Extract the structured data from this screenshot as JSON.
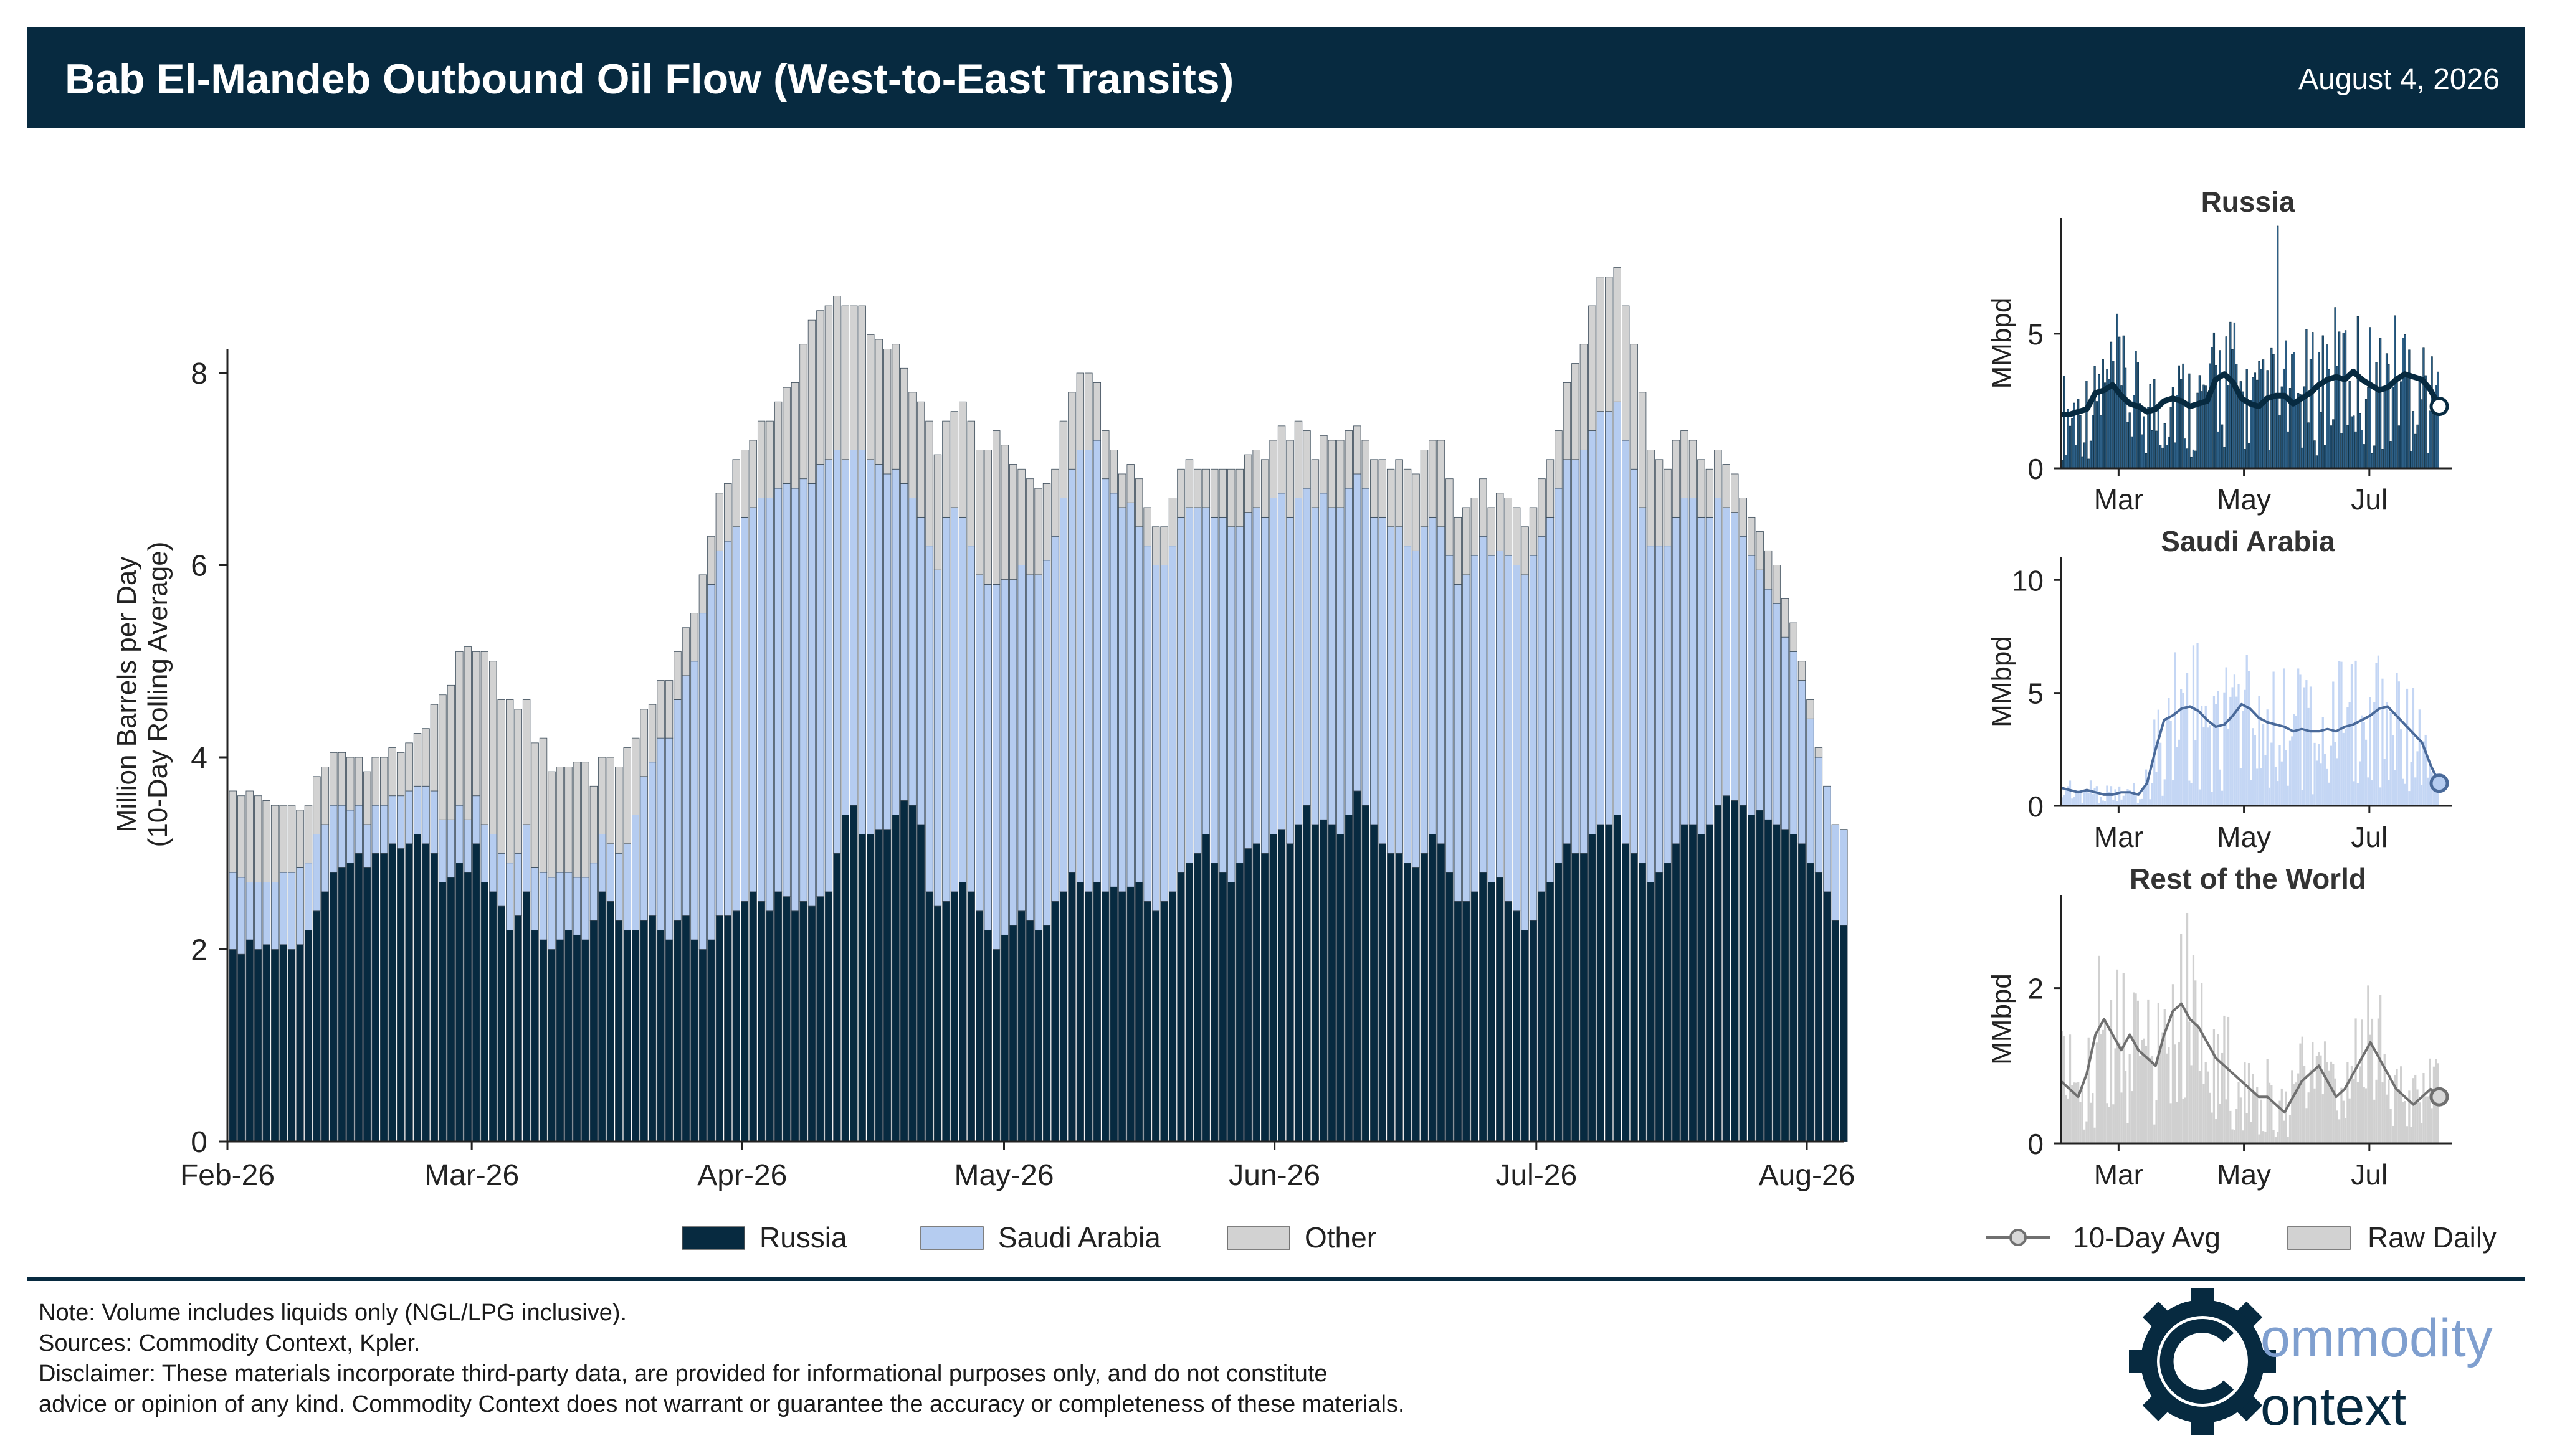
{
  "header": {
    "title": "Bab El-Mandeb Outbound Oil Flow (West-to-East Transits)",
    "date": "August 4, 2026"
  },
  "colors": {
    "russia": "#072a40",
    "saudi": "#b5ccf0",
    "other": "#d2d2d2",
    "header_bg": "#072a40",
    "logo_gear": "#072a40",
    "logo_text": "#7f9fcf"
  },
  "chart_data": [
    {
      "type": "bar",
      "stacked": true,
      "ylabel": "Million Barrels per Day\n(10-Day Rolling Average)",
      "ylim": [
        0,
        9.3
      ],
      "yticks": [
        0,
        2,
        4,
        6,
        8
      ],
      "x_start": "2026-02-01",
      "x_ticks": [
        "Feb-26",
        "Mar-26",
        "Apr-26",
        "May-26",
        "Jun-26",
        "Jul-26",
        "Aug-26"
      ],
      "x_tick_dates": [
        "2026-02-01",
        "2026-03-01",
        "2026-04-01",
        "2026-05-01",
        "2026-06-01",
        "2026-07-01",
        "2026-08-01"
      ],
      "series": [
        {
          "name": "Russia",
          "values": [
            2.0,
            1.95,
            2.1,
            2.0,
            2.05,
            2.0,
            2.05,
            2.0,
            2.05,
            2.2,
            2.4,
            2.6,
            2.8,
            2.85,
            2.9,
            3.0,
            2.85,
            3.0,
            3.0,
            3.1,
            3.05,
            3.1,
            3.2,
            3.1,
            3.0,
            2.7,
            2.75,
            2.9,
            2.8,
            3.1,
            2.7,
            2.6,
            2.45,
            2.2,
            2.35,
            2.6,
            2.2,
            2.1,
            2.0,
            2.1,
            2.2,
            2.15,
            2.1,
            2.3,
            2.6,
            2.5,
            2.3,
            2.2,
            2.2,
            2.3,
            2.35,
            2.2,
            2.1,
            2.3,
            2.35,
            2.1,
            2.0,
            2.1,
            2.35,
            2.35,
            2.4,
            2.5,
            2.6,
            2.5,
            2.4,
            2.6,
            2.55,
            2.4,
            2.5,
            2.45,
            2.55,
            2.6,
            3.0,
            3.4,
            3.5,
            3.2,
            3.2,
            3.25,
            3.25,
            3.4,
            3.55,
            3.5,
            3.3,
            2.6,
            2.45,
            2.5,
            2.6,
            2.7,
            2.6,
            2.4,
            2.2,
            2.0,
            2.15,
            2.25,
            2.4,
            2.3,
            2.2,
            2.25,
            2.5,
            2.6,
            2.8,
            2.7,
            2.6,
            2.7,
            2.6,
            2.65,
            2.6,
            2.65,
            2.7,
            2.5,
            2.4,
            2.5,
            2.6,
            2.8,
            2.9,
            3.0,
            3.2,
            2.9,
            2.8,
            2.7,
            2.9,
            3.05,
            3.1,
            3.0,
            3.2,
            3.25,
            3.1,
            3.3,
            3.5,
            3.3,
            3.35,
            3.3,
            3.2,
            3.4,
            3.65,
            3.5,
            3.3,
            3.1,
            3.0,
            3.0,
            2.9,
            2.85,
            3.0,
            3.2,
            3.1,
            2.8,
            2.5,
            2.5,
            2.6,
            2.8,
            2.7,
            2.75,
            2.5,
            2.4,
            2.2,
            2.3,
            2.6,
            2.7,
            2.9,
            3.1,
            3.0,
            3.0,
            3.2,
            3.3,
            3.3,
            3.4,
            3.1,
            3.0,
            2.9,
            2.7,
            2.8,
            2.9,
            3.1,
            3.3,
            3.3,
            3.2,
            3.3,
            3.5,
            3.6,
            3.55,
            3.5,
            3.4,
            3.45,
            3.35,
            3.3,
            3.25,
            3.2,
            3.1,
            2.9,
            2.8,
            2.6,
            2.3,
            2.25
          ]
        },
        {
          "name": "Saudi Arabia",
          "values": [
            0.8,
            0.8,
            0.6,
            0.7,
            0.65,
            0.7,
            0.75,
            0.8,
            0.8,
            0.7,
            0.8,
            0.7,
            0.7,
            0.65,
            0.55,
            0.5,
            0.45,
            0.5,
            0.5,
            0.5,
            0.55,
            0.55,
            0.5,
            0.6,
            0.65,
            0.65,
            0.6,
            0.6,
            0.55,
            0.5,
            0.6,
            0.6,
            0.55,
            0.7,
            0.65,
            0.7,
            0.65,
            0.7,
            0.75,
            0.7,
            0.6,
            0.6,
            0.65,
            0.6,
            0.6,
            0.6,
            0.7,
            0.9,
            1.2,
            1.5,
            1.6,
            2.0,
            2.1,
            2.3,
            2.5,
            2.9,
            3.5,
            3.7,
            3.8,
            3.9,
            4.0,
            4.0,
            4.0,
            4.2,
            4.3,
            4.2,
            4.3,
            4.4,
            4.4,
            4.4,
            4.5,
            4.5,
            4.2,
            3.7,
            3.7,
            4.0,
            3.9,
            3.8,
            3.7,
            3.6,
            3.3,
            3.2,
            3.2,
            3.6,
            3.5,
            4.0,
            4.0,
            3.8,
            3.6,
            3.5,
            3.6,
            3.8,
            3.7,
            3.6,
            3.6,
            3.6,
            3.7,
            3.8,
            3.8,
            4.1,
            4.2,
            4.5,
            4.6,
            4.6,
            4.3,
            4.1,
            4.0,
            4.0,
            3.7,
            3.7,
            3.6,
            3.5,
            3.6,
            3.7,
            3.7,
            3.6,
            3.4,
            3.6,
            3.7,
            3.7,
            3.5,
            3.5,
            3.5,
            3.5,
            3.5,
            3.5,
            3.4,
            3.4,
            3.3,
            3.3,
            3.4,
            3.3,
            3.4,
            3.4,
            3.3,
            3.3,
            3.2,
            3.4,
            3.4,
            3.4,
            3.3,
            3.3,
            3.4,
            3.3,
            3.3,
            3.3,
            3.3,
            3.4,
            3.5,
            3.5,
            3.4,
            3.4,
            3.6,
            3.6,
            3.7,
            3.8,
            3.7,
            3.8,
            3.9,
            4.0,
            4.1,
            4.2,
            4.2,
            4.3,
            4.3,
            4.3,
            4.2,
            4.0,
            3.7,
            3.5,
            3.4,
            3.3,
            3.4,
            3.4,
            3.4,
            3.3,
            3.2,
            3.2,
            3.0,
            3.0,
            2.8,
            2.7,
            2.5,
            2.4,
            2.3,
            2.0,
            1.9,
            1.7,
            1.5,
            1.2,
            1.1,
            1.0,
            1.0
          ]
        },
        {
          "name": "Other",
          "values": [
            0.85,
            0.85,
            0.95,
            0.9,
            0.85,
            0.8,
            0.7,
            0.7,
            0.6,
            0.6,
            0.6,
            0.6,
            0.55,
            0.55,
            0.55,
            0.5,
            0.55,
            0.5,
            0.5,
            0.5,
            0.45,
            0.5,
            0.55,
            0.6,
            0.9,
            1.3,
            1.4,
            1.6,
            1.8,
            1.5,
            1.8,
            1.8,
            1.6,
            1.7,
            1.5,
            1.3,
            1.3,
            1.4,
            1.1,
            1.1,
            1.1,
            1.2,
            1.2,
            0.8,
            0.8,
            0.9,
            0.9,
            1.0,
            0.8,
            0.7,
            0.6,
            0.6,
            0.6,
            0.5,
            0.5,
            0.5,
            0.4,
            0.5,
            0.6,
            0.6,
            0.7,
            0.7,
            0.7,
            0.8,
            0.8,
            0.9,
            1.0,
            1.1,
            1.4,
            1.7,
            1.6,
            1.6,
            1.6,
            1.6,
            1.5,
            1.5,
            1.3,
            1.3,
            1.3,
            1.3,
            1.2,
            1.1,
            1.2,
            1.3,
            1.2,
            1.0,
            1.0,
            1.2,
            1.3,
            1.3,
            1.4,
            1.6,
            1.4,
            1.2,
            1.0,
            1.0,
            0.9,
            0.8,
            0.7,
            0.8,
            0.8,
            0.8,
            0.8,
            0.6,
            0.5,
            0.45,
            0.35,
            0.4,
            0.5,
            0.4,
            0.4,
            0.4,
            0.5,
            0.5,
            0.5,
            0.4,
            0.4,
            0.5,
            0.5,
            0.6,
            0.6,
            0.6,
            0.6,
            0.6,
            0.6,
            0.7,
            0.8,
            0.8,
            0.6,
            0.5,
            0.6,
            0.7,
            0.7,
            0.6,
            0.5,
            0.5,
            0.6,
            0.6,
            0.6,
            0.7,
            0.8,
            0.8,
            0.8,
            0.8,
            0.9,
            0.8,
            0.7,
            0.7,
            0.6,
            0.6,
            0.5,
            0.6,
            0.6,
            0.6,
            0.5,
            0.5,
            0.6,
            0.6,
            0.6,
            0.8,
            1.0,
            1.1,
            1.3,
            1.4,
            1.4,
            1.4,
            1.4,
            1.3,
            1.2,
            1.0,
            0.9,
            0.8,
            0.8,
            0.7,
            0.6,
            0.6,
            0.5,
            0.5,
            0.45,
            0.4,
            0.4,
            0.4,
            0.4,
            0.4,
            0.4,
            0.4,
            0.3,
            0.2,
            0.2,
            0.1
          ]
        }
      ]
    },
    {
      "type": "bar",
      "title": "Russia",
      "ylabel": "MMbpd",
      "ylim": [
        0,
        9.3
      ],
      "yticks": [
        0,
        5
      ],
      "x_ticks": [
        "Mar",
        "May",
        "Jul"
      ],
      "x_tick_dates": [
        "2026-03-01",
        "2026-05-01",
        "2026-07-01"
      ],
      "raw_daily_desc": "daily bars ranging roughly 0–6 MMbpd, one spike near 9.3",
      "avg_10day": [
        2.0,
        2.0,
        2.1,
        2.2,
        2.8,
        2.9,
        3.1,
        2.7,
        2.4,
        2.3,
        2.1,
        2.2,
        2.5,
        2.6,
        2.5,
        2.3,
        2.4,
        2.5,
        3.3,
        3.5,
        3.2,
        2.6,
        2.4,
        2.3,
        2.6,
        2.7,
        2.7,
        2.4,
        2.6,
        2.8,
        3.1,
        3.3,
        3.4,
        3.3,
        3.6,
        3.3,
        3.1,
        2.9,
        3.0,
        3.3,
        3.5,
        3.4,
        3.3,
        2.9,
        2.3
      ]
    },
    {
      "type": "bar",
      "title": "Saudi Arabia",
      "ylabel": "MMbpd",
      "ylim": [
        0,
        11
      ],
      "yticks": [
        0,
        5,
        10
      ],
      "x_ticks": [
        "Mar",
        "May",
        "Jul"
      ],
      "x_tick_dates": [
        "2026-03-01",
        "2026-05-01",
        "2026-07-01"
      ],
      "avg_10day": [
        0.8,
        0.7,
        0.6,
        0.7,
        0.6,
        0.5,
        0.5,
        0.6,
        0.6,
        0.5,
        1.0,
        2.5,
        3.8,
        4.0,
        4.3,
        4.4,
        4.2,
        3.8,
        3.5,
        3.6,
        4.0,
        4.5,
        4.3,
        3.9,
        3.7,
        3.6,
        3.5,
        3.3,
        3.4,
        3.3,
        3.3,
        3.4,
        3.3,
        3.5,
        3.6,
        3.8,
        4.0,
        4.3,
        4.4,
        4.0,
        3.6,
        3.2,
        2.8,
        1.8,
        1.0
      ]
    },
    {
      "type": "bar",
      "title": "Rest of the World",
      "ylabel": "MMbpd",
      "ylim": [
        0,
        3.2
      ],
      "yticks": [
        0,
        2
      ],
      "x_ticks": [
        "Mar",
        "May",
        "Jul"
      ],
      "x_tick_dates": [
        "2026-03-01",
        "2026-05-01",
        "2026-07-01"
      ],
      "avg_10day": [
        0.8,
        0.7,
        0.6,
        0.9,
        1.4,
        1.6,
        1.4,
        1.2,
        1.4,
        1.2,
        1.1,
        1.0,
        1.4,
        1.7,
        1.8,
        1.6,
        1.5,
        1.3,
        1.1,
        1.0,
        0.9,
        0.8,
        0.7,
        0.6,
        0.6,
        0.5,
        0.4,
        0.6,
        0.8,
        0.9,
        1.0,
        0.8,
        0.6,
        0.7,
        0.9,
        1.1,
        1.3,
        1.1,
        0.9,
        0.7,
        0.6,
        0.5,
        0.6,
        0.7,
        0.6
      ]
    }
  ],
  "legend_main": [
    "Russia",
    "Saudi Arabia",
    "Other"
  ],
  "legend_small": [
    "10-Day Avg",
    "Raw Daily"
  ],
  "notes": [
    "Note: Volume includes liquids only (NGL/LPG inclusive).",
    "Sources: Commodity Context, Kpler.",
    "Disclaimer: These materials incorporate third-party data, are provided for informational purposes only, and do not constitute",
    "advice or opinion of any kind. Commodity Context does not warrant or guarantee the accuracy or completeness of these materials."
  ],
  "logo": {
    "line1": "ommodity",
    "line2": "ontext"
  }
}
